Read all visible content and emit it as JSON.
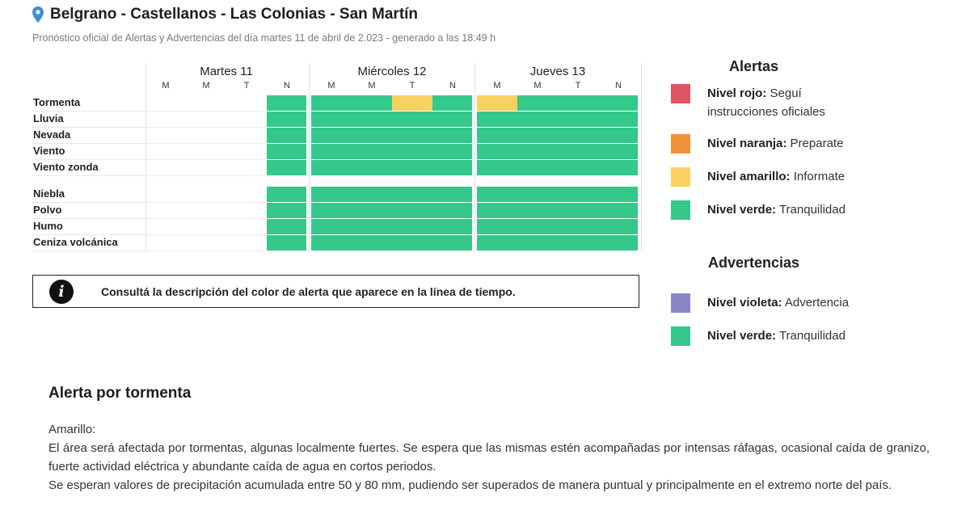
{
  "header": {
    "title": "Belgrano - Castellanos - Las Colonias - San Martín",
    "subtitle": "Pronóstico oficial de Alertas y Advertencias del día martes 11 de abril de 2.023 - generado a las 18:49 h",
    "pin_icon": "map-pin-icon"
  },
  "colors": {
    "green": "#34c88a",
    "yellow": "#f8d160",
    "red": "#de5463",
    "orange": "#f0923a",
    "violet": "#8b86c6",
    "pin": "#3b8fd6"
  },
  "timeline": {
    "days": [
      {
        "name": "Martes 11",
        "slots": [
          "M",
          "M",
          "T",
          "N"
        ]
      },
      {
        "name": "Miércoles 12",
        "slots": [
          "M",
          "M",
          "T",
          "N"
        ]
      },
      {
        "name": "Jueves 13",
        "slots": [
          "M",
          "M",
          "T",
          "N"
        ]
      }
    ],
    "rows": [
      {
        "label": "Tormenta",
        "levels": [
          "",
          "",
          "",
          "green",
          "green",
          "green",
          "yellow",
          "green",
          "yellow",
          "green",
          "green",
          "green"
        ]
      },
      {
        "label": "Lluvia",
        "levels": [
          "",
          "",
          "",
          "green",
          "green",
          "green",
          "green",
          "green",
          "green",
          "green",
          "green",
          "green"
        ]
      },
      {
        "label": "Nevada",
        "levels": [
          "",
          "",
          "",
          "green",
          "green",
          "green",
          "green",
          "green",
          "green",
          "green",
          "green",
          "green"
        ]
      },
      {
        "label": "Viento",
        "levels": [
          "",
          "",
          "",
          "green",
          "green",
          "green",
          "green",
          "green",
          "green",
          "green",
          "green",
          "green"
        ]
      },
      {
        "label": "Viento zonda",
        "levels": [
          "",
          "",
          "",
          "green",
          "green",
          "green",
          "green",
          "green",
          "green",
          "green",
          "green",
          "green"
        ]
      },
      {
        "label": "Niebla",
        "levels": [
          "",
          "",
          "",
          "green",
          "green",
          "green",
          "green",
          "green",
          "green",
          "green",
          "green",
          "green"
        ]
      },
      {
        "label": "Polvo",
        "levels": [
          "",
          "",
          "",
          "green",
          "green",
          "green",
          "green",
          "green",
          "green",
          "green",
          "green",
          "green"
        ]
      },
      {
        "label": "Humo",
        "levels": [
          "",
          "",
          "",
          "green",
          "green",
          "green",
          "green",
          "green",
          "green",
          "green",
          "green",
          "green"
        ]
      },
      {
        "label": "Ceniza volcánica",
        "levels": [
          "",
          "",
          "",
          "green",
          "green",
          "green",
          "green",
          "green",
          "green",
          "green",
          "green",
          "green"
        ]
      }
    ]
  },
  "info": {
    "icon": "info-icon",
    "text": "Consultá la descripción del color de alerta que aparece en la línea de tiempo."
  },
  "legend": {
    "alertas_title": "Alertas",
    "alertas": [
      {
        "name": "Nivel rojo:",
        "desc": " Seguí instrucciones oficiales",
        "color": "#de5463"
      },
      {
        "name": "Nivel naranja:",
        "desc": " Preparate",
        "color": "#f0923a"
      },
      {
        "name": "Nivel amarillo:",
        "desc": " Informate",
        "color": "#f8d160"
      },
      {
        "name": "Nivel verde:",
        "desc": " Tranquilidad",
        "color": "#34c88a"
      }
    ],
    "advertencias_title": "Advertencias",
    "advertencias": [
      {
        "name": "Nivel violeta:",
        "desc": " Advertencia",
        "color": "#8b86c6"
      },
      {
        "name": "Nivel verde:",
        "desc": " Tranquilidad",
        "color": "#34c88a"
      }
    ]
  },
  "description": {
    "title": "Alerta por tormenta",
    "level": "Amarillo:",
    "paragraph1": "El área será afectada por tormentas, algunas localmente fuertes. Se espera que las mismas estén acompañadas por intensas ráfagas, ocasional caída de granizo, fuerte actividad eléctrica y abundante caída de agua en cortos periodos.",
    "paragraph2": "Se esperan valores de precipitación acumulada entre 50 y 80 mm, pudiendo ser superados de manera puntual y principalmente en el extremo norte del país."
  }
}
